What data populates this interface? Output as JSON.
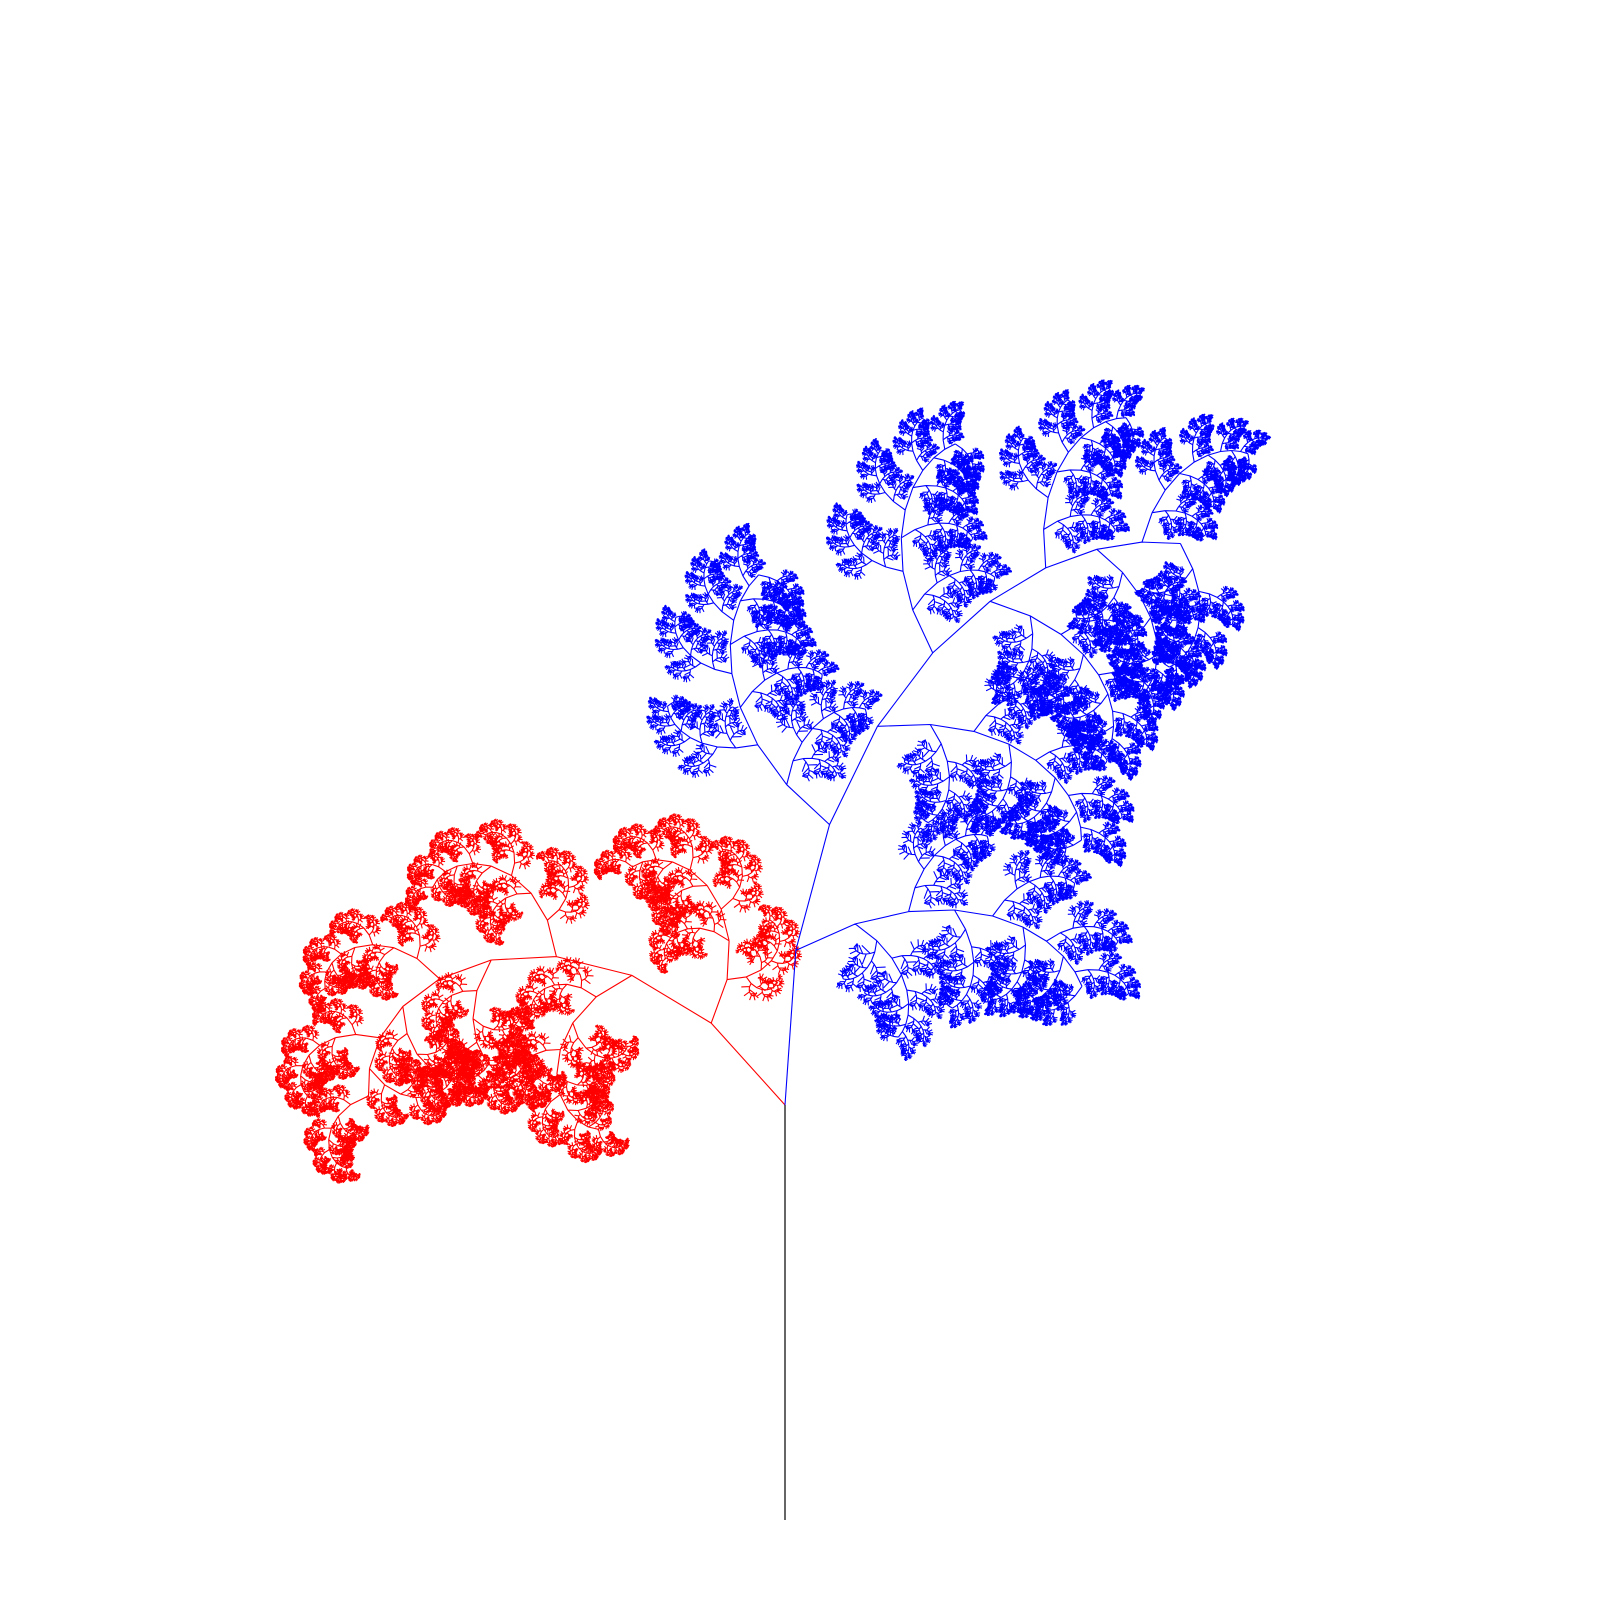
{
  "figure": {
    "background_color": "#ffffff",
    "trunk_color": "#000000",
    "left_frond_color": "#ff0000",
    "right_frond_color": "#0000ff"
  }
}
